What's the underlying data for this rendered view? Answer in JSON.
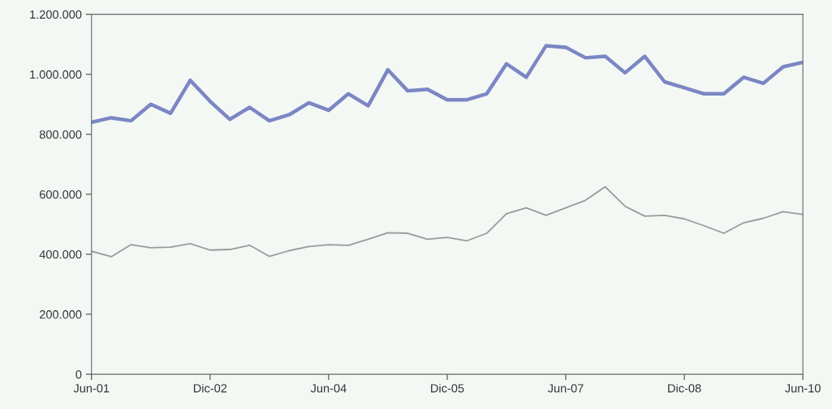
{
  "chart_data": {
    "type": "line",
    "categories": [
      "Jun-01",
      null,
      null,
      null,
      null,
      null,
      "Dic-02",
      null,
      null,
      null,
      null,
      null,
      "Jun-04",
      null,
      null,
      null,
      null,
      null,
      "Dic-05",
      null,
      null,
      null,
      null,
      null,
      "Jun-07",
      null,
      null,
      null,
      null,
      null,
      "Dic-08",
      null,
      null,
      null,
      null,
      null,
      "Jun-10"
    ],
    "series": [
      {
        "color": "#7b86c4",
        "values": [
          840000,
          855000,
          845000,
          900000,
          870000,
          980000,
          910000,
          850000,
          890000,
          845000,
          865000,
          905000,
          880000,
          935000,
          895000,
          1015000,
          945000,
          950000,
          915000,
          915000,
          935000,
          1035000,
          990000,
          1095000,
          1090000,
          1055000,
          1060000,
          1005000,
          1060000,
          975000,
          955000,
          935000,
          935000,
          990000,
          970000,
          1025000,
          1040000
        ]
      },
      {
        "color": "#9a9a9a",
        "values": [
          410000,
          392000,
          432000,
          422000,
          424000,
          435000,
          414000,
          416000,
          430000,
          393000,
          412000,
          426000,
          432000,
          430000,
          450000,
          472000,
          470000,
          450000,
          456000,
          445000,
          470000,
          535000,
          555000,
          530000,
          555000,
          580000,
          625000,
          560000,
          527000,
          530000,
          518000,
          495000,
          470000,
          505000,
          520000,
          542000,
          533000
        ]
      }
    ],
    "ylim": [
      0,
      1200000
    ],
    "yticks": [
      0,
      {
        "value": 200000,
        "label": "200.000"
      },
      {
        "value": 400000,
        "label": "400.000"
      },
      {
        "value": 600000,
        "label": "600.000"
      },
      {
        "value": 800000,
        "label": "800.000"
      },
      {
        "value": 1000000,
        "label": "1.000.000"
      },
      {
        "value": 1200000,
        "label": "1.200.000"
      }
    ],
    "grid": false,
    "marker": "none",
    "line_style": "solid"
  }
}
